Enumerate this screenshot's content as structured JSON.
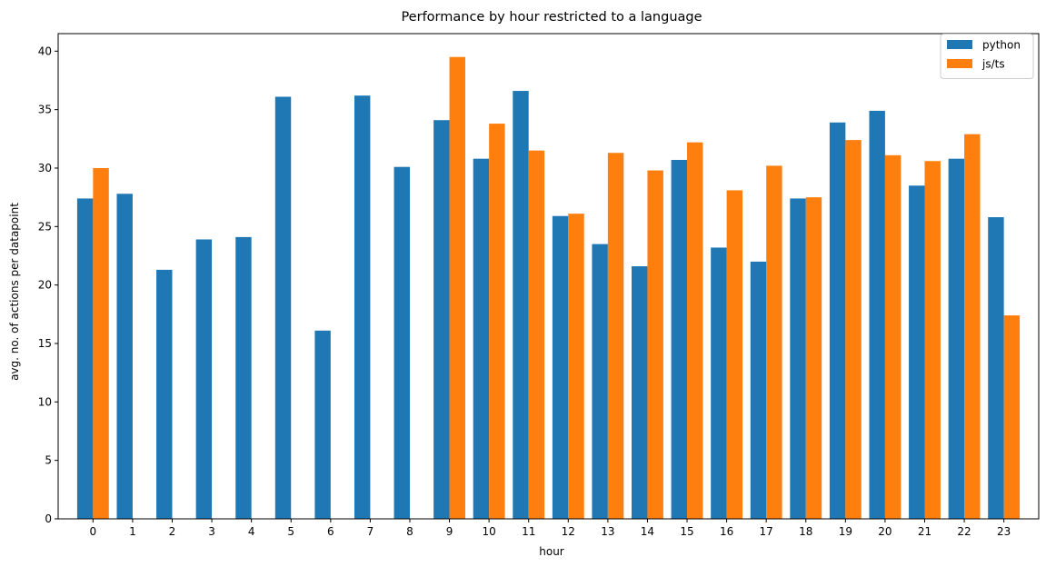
{
  "chart_data": {
    "type": "bar",
    "title": "Performance by hour restricted to a language",
    "xlabel": "hour",
    "ylabel": "avg. no. of actions per datapoint",
    "categories": [
      "0",
      "1",
      "2",
      "3",
      "4",
      "5",
      "6",
      "7",
      "8",
      "9",
      "10",
      "11",
      "12",
      "13",
      "14",
      "15",
      "16",
      "17",
      "18",
      "19",
      "20",
      "21",
      "22",
      "23"
    ],
    "series": [
      {
        "name": "python",
        "color": "#1f77b4",
        "values": [
          27.4,
          27.8,
          21.3,
          23.9,
          24.1,
          36.1,
          16.1,
          36.2,
          30.1,
          34.1,
          30.8,
          36.6,
          25.9,
          23.5,
          21.6,
          30.7,
          23.2,
          22.0,
          27.4,
          33.9,
          34.9,
          28.5,
          30.8,
          25.8
        ]
      },
      {
        "name": "js/ts",
        "color": "#ff7f0e",
        "values": [
          30.0,
          null,
          null,
          null,
          null,
          null,
          null,
          null,
          null,
          39.5,
          33.8,
          31.5,
          26.1,
          31.3,
          29.8,
          32.2,
          28.1,
          30.2,
          27.5,
          32.4,
          31.1,
          30.6,
          32.9,
          17.4
        ]
      }
    ],
    "ylim": [
      0,
      41.5
    ],
    "yticks": [
      "0",
      "5",
      "10",
      "15",
      "20",
      "25",
      "30",
      "35",
      "40"
    ],
    "grid": false,
    "legend_position": "top-right"
  }
}
